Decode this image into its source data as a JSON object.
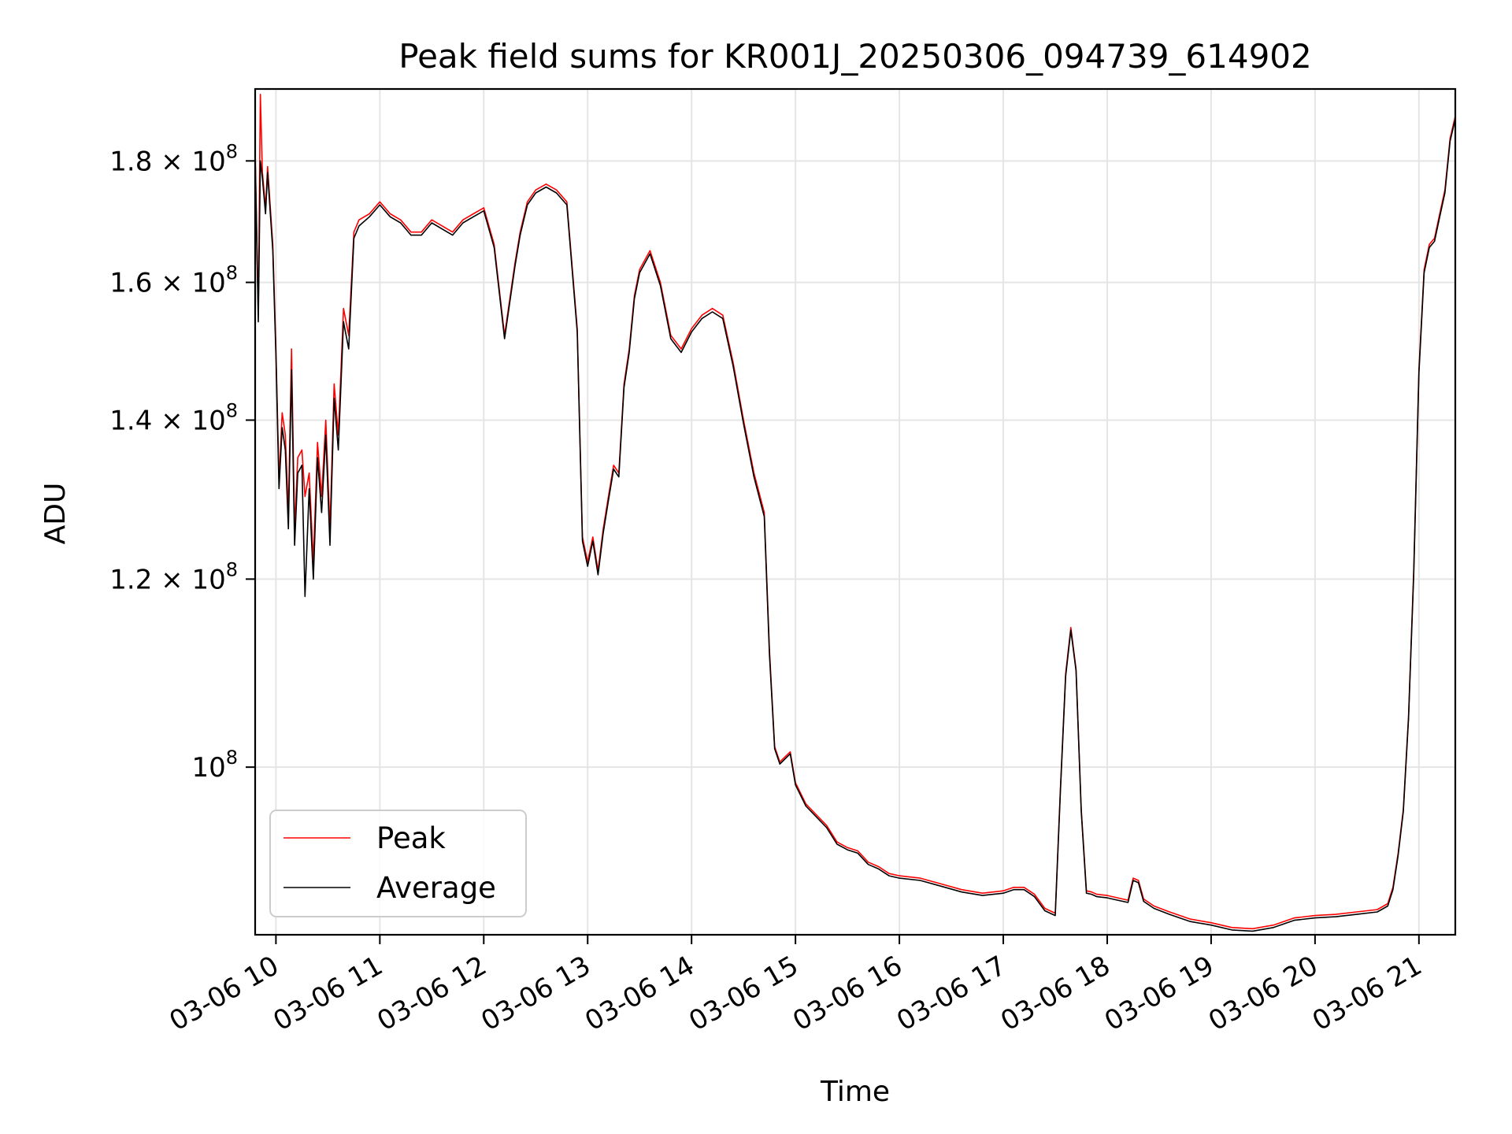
{
  "chart_data": {
    "type": "line",
    "title": "Peak field sums for KR001J_20250306_094739_614902",
    "xlabel": "Time",
    "ylabel": "ADU",
    "yscale": "log",
    "ylim": [
      85000000,
      193000000
    ],
    "xlim_hours": [
      9.8,
      21.35
    ],
    "grid": true,
    "legend_position": "lower-left",
    "x_ticks": [
      {
        "hour": 10,
        "label": "03-06 10"
      },
      {
        "hour": 11,
        "label": "03-06 11"
      },
      {
        "hour": 12,
        "label": "03-06 12"
      },
      {
        "hour": 13,
        "label": "03-06 13"
      },
      {
        "hour": 14,
        "label": "03-06 14"
      },
      {
        "hour": 15,
        "label": "03-06 15"
      },
      {
        "hour": 16,
        "label": "03-06 16"
      },
      {
        "hour": 17,
        "label": "03-06 17"
      },
      {
        "hour": 18,
        "label": "03-06 18"
      },
      {
        "hour": 19,
        "label": "03-06 19"
      },
      {
        "hour": 20,
        "label": "03-06 20"
      },
      {
        "hour": 21,
        "label": "03-06 21"
      }
    ],
    "y_ticks": [
      {
        "value": 100000000,
        "mantissa": "",
        "base": "10",
        "exp": "8"
      },
      {
        "value": 120000000,
        "mantissa": "1.2",
        "base": "10",
        "exp": "8"
      },
      {
        "value": 140000000,
        "mantissa": "1.4",
        "base": "10",
        "exp": "8"
      },
      {
        "value": 160000000,
        "mantissa": "1.6",
        "base": "10",
        "exp": "8"
      },
      {
        "value": 180000000,
        "mantissa": "1.8",
        "base": "10",
        "exp": "8"
      }
    ],
    "series": [
      {
        "name": "Peak",
        "color": "#ff0000",
        "x_hours": [
          9.8,
          9.83,
          9.85,
          9.87,
          9.9,
          9.92,
          9.95,
          9.97,
          10.0,
          10.03,
          10.06,
          10.09,
          10.12,
          10.15,
          10.18,
          10.21,
          10.25,
          10.28,
          10.32,
          10.36,
          10.4,
          10.44,
          10.48,
          10.52,
          10.56,
          10.6,
          10.65,
          10.7,
          10.75,
          10.8,
          10.9,
          11.0,
          11.1,
          11.2,
          11.3,
          11.4,
          11.5,
          11.6,
          11.7,
          11.8,
          11.9,
          12.0,
          12.1,
          12.2,
          12.3,
          12.35,
          12.42,
          12.5,
          12.6,
          12.7,
          12.8,
          12.9,
          12.95,
          13.0,
          13.05,
          13.1,
          13.15,
          13.2,
          13.25,
          13.3,
          13.35,
          13.4,
          13.45,
          13.5,
          13.6,
          13.7,
          13.8,
          13.9,
          14.0,
          14.1,
          14.2,
          14.3,
          14.4,
          14.5,
          14.6,
          14.7,
          14.75,
          14.8,
          14.85,
          14.9,
          14.95,
          15.0,
          15.1,
          15.2,
          15.3,
          15.4,
          15.5,
          15.6,
          15.7,
          15.8,
          15.9,
          16.0,
          16.2,
          16.4,
          16.6,
          16.8,
          17.0,
          17.1,
          17.2,
          17.3,
          17.4,
          17.5,
          17.55,
          17.6,
          17.65,
          17.7,
          17.75,
          17.8,
          17.85,
          17.9,
          18.0,
          18.1,
          18.2,
          18.25,
          18.3,
          18.35,
          18.45,
          18.6,
          18.8,
          19.0,
          19.2,
          19.4,
          19.6,
          19.8,
          20.0,
          20.2,
          20.4,
          20.6,
          20.7,
          20.75,
          20.8,
          20.85,
          20.9,
          20.95,
          21.0,
          21.05,
          21.1,
          21.15,
          21.2,
          21.25,
          21.3,
          21.35
        ],
        "values": [
          182000000,
          155000000,
          192000000,
          178000000,
          172000000,
          179000000,
          171000000,
          166000000,
          150000000,
          132000000,
          141000000,
          138000000,
          128000000,
          150000000,
          126000000,
          135000000,
          136000000,
          130000000,
          133000000,
          122000000,
          137000000,
          130000000,
          140000000,
          126000000,
          145000000,
          138000000,
          156000000,
          152000000,
          168000000,
          170000000,
          171000000,
          173000000,
          171000000,
          170000000,
          168000000,
          168000000,
          170000000,
          169000000,
          168000000,
          170000000,
          171000000,
          172000000,
          166000000,
          152000000,
          163000000,
          168000000,
          173000000,
          175000000,
          176000000,
          175000000,
          173000000,
          153000000,
          125000000,
          122000000,
          125000000,
          121000000,
          126000000,
          130000000,
          134000000,
          133000000,
          145000000,
          150000000,
          158000000,
          162000000,
          165000000,
          160000000,
          152000000,
          150000000,
          153000000,
          155000000,
          156000000,
          155000000,
          148000000,
          140000000,
          133000000,
          128000000,
          112000000,
          102000000,
          100500000,
          101000000,
          101500000,
          98500000,
          96500000,
          95500000,
          94500000,
          93000000,
          92500000,
          92200000,
          91200000,
          90800000,
          90200000,
          90000000,
          89800000,
          89300000,
          88800000,
          88500000,
          88700000,
          89000000,
          89000000,
          88400000,
          87200000,
          86800000,
          98000000,
          109500000,
          114500000,
          110000000,
          96000000,
          88700000,
          88600000,
          88400000,
          88300000,
          88100000,
          87900000,
          89800000,
          89600000,
          88000000,
          87400000,
          86900000,
          86300000,
          86000000,
          85600000,
          85500000,
          85800000,
          86400000,
          86600000,
          86700000,
          86900000,
          87100000,
          87600000,
          89000000,
          92000000,
          96000000,
          105000000,
          121000000,
          147000000,
          162000000,
          166000000,
          167000000,
          171000000,
          175000000,
          184000000,
          188000000
        ]
      },
      {
        "name": "Average",
        "color": "#000000",
        "x_hours": [
          9.8,
          9.83,
          9.85,
          9.87,
          9.9,
          9.92,
          9.95,
          9.97,
          10.0,
          10.03,
          10.06,
          10.09,
          10.12,
          10.15,
          10.18,
          10.21,
          10.25,
          10.28,
          10.32,
          10.36,
          10.4,
          10.44,
          10.48,
          10.52,
          10.56,
          10.6,
          10.65,
          10.7,
          10.75,
          10.8,
          10.9,
          11.0,
          11.1,
          11.2,
          11.3,
          11.4,
          11.5,
          11.6,
          11.7,
          11.8,
          11.9,
          12.0,
          12.1,
          12.2,
          12.3,
          12.35,
          12.42,
          12.5,
          12.6,
          12.7,
          12.8,
          12.9,
          12.95,
          13.0,
          13.05,
          13.1,
          13.15,
          13.2,
          13.25,
          13.3,
          13.35,
          13.4,
          13.45,
          13.5,
          13.6,
          13.7,
          13.8,
          13.9,
          14.0,
          14.1,
          14.2,
          14.3,
          14.4,
          14.5,
          14.6,
          14.7,
          14.75,
          14.8,
          14.85,
          14.9,
          14.95,
          15.0,
          15.1,
          15.2,
          15.3,
          15.4,
          15.5,
          15.6,
          15.7,
          15.8,
          15.9,
          16.0,
          16.2,
          16.4,
          16.6,
          16.8,
          17.0,
          17.1,
          17.2,
          17.3,
          17.4,
          17.5,
          17.55,
          17.6,
          17.65,
          17.7,
          17.75,
          17.8,
          17.85,
          17.9,
          18.0,
          18.1,
          18.2,
          18.25,
          18.3,
          18.35,
          18.45,
          18.6,
          18.8,
          19.0,
          19.2,
          19.4,
          19.6,
          19.8,
          20.0,
          20.2,
          20.4,
          20.6,
          20.7,
          20.75,
          20.8,
          20.85,
          20.9,
          20.95,
          21.0,
          21.05,
          21.1,
          21.15,
          21.2,
          21.25,
          21.3,
          21.35
        ],
        "values": [
          181000000,
          154000000,
          180000000,
          177000000,
          171000000,
          178000000,
          170000000,
          165000000,
          149000000,
          131000000,
          139000000,
          136000000,
          126000000,
          147000000,
          124000000,
          133000000,
          134000000,
          118000000,
          131000000,
          120000000,
          135000000,
          128000000,
          138000000,
          124000000,
          143000000,
          136000000,
          154000000,
          150000000,
          167000000,
          169000000,
          170500000,
          172500000,
          170500000,
          169500000,
          167500000,
          167500000,
          169500000,
          168500000,
          167500000,
          169500000,
          170500000,
          171500000,
          165500000,
          151500000,
          162500000,
          167500000,
          172500000,
          174500000,
          175500000,
          174500000,
          172500000,
          152500000,
          124500000,
          121500000,
          124500000,
          120500000,
          125500000,
          129500000,
          133500000,
          132500000,
          144500000,
          149500000,
          157500000,
          161500000,
          164500000,
          159500000,
          151500000,
          149500000,
          152500000,
          154500000,
          155500000,
          154500000,
          147500000,
          139500000,
          132500000,
          127500000,
          111500000,
          101800000,
          100300000,
          100800000,
          101300000,
          98300000,
          96300000,
          95300000,
          94300000,
          92800000,
          92300000,
          92000000,
          91000000,
          90600000,
          90000000,
          89800000,
          89600000,
          89100000,
          88600000,
          88300000,
          88500000,
          88800000,
          88800000,
          88200000,
          87000000,
          86600000,
          97800000,
          109200000,
          114200000,
          109800000,
          95800000,
          88500000,
          88400000,
          88200000,
          88100000,
          87900000,
          87700000,
          89600000,
          89400000,
          87800000,
          87200000,
          86700000,
          86100000,
          85800000,
          85400000,
          85300000,
          85600000,
          86200000,
          86400000,
          86500000,
          86700000,
          86900000,
          87400000,
          88800000,
          91800000,
          95800000,
          104800000,
          120500000,
          146500000,
          161500000,
          165500000,
          166500000,
          170500000,
          174500000,
          183500000,
          187500000
        ]
      }
    ]
  }
}
